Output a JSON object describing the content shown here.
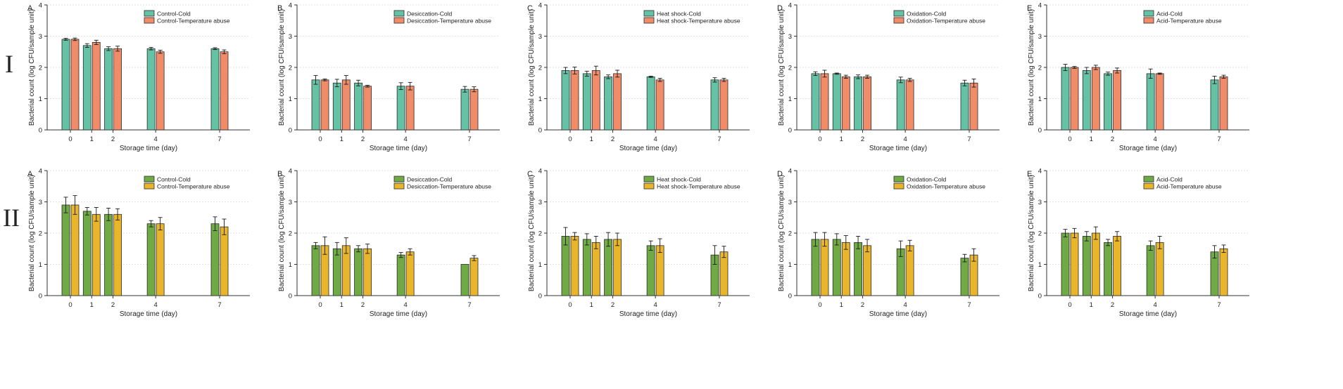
{
  "row_labels": [
    "I",
    "II"
  ],
  "colors": {
    "row1": {
      "cold": "#66C2A5",
      "abuse": "#F08C68"
    },
    "row2": {
      "cold": "#6FAA45",
      "abuse": "#E9B52B"
    },
    "edge": "#2b2b2b",
    "grid": "#d9d9d9",
    "axis": "#333333"
  },
  "chart_data": [
    {
      "row": 0,
      "panel_letter": "A",
      "type": "bar",
      "xlabel": "Storage time (day)",
      "ylabel": "Bacterial count (log CFU/sample unit)",
      "ylim": [
        0,
        4
      ],
      "yticks": [
        0,
        1,
        2,
        3,
        4
      ],
      "x": [
        0,
        1,
        2,
        4,
        7
      ],
      "legend_position": "top-right",
      "grid": true,
      "series": [
        {
          "name": "Control-Cold",
          "values": [
            2.9,
            2.7,
            2.6,
            2.6,
            2.6
          ],
          "errors": [
            0.03,
            0.06,
            0.06,
            0.04,
            0.03
          ]
        },
        {
          "name": "Control-Temperature abuse",
          "values": [
            2.9,
            2.8,
            2.6,
            2.5,
            2.5
          ],
          "errors": [
            0.04,
            0.07,
            0.08,
            0.05,
            0.06
          ]
        }
      ]
    },
    {
      "row": 0,
      "panel_letter": "B",
      "type": "bar",
      "xlabel": "Storage time (day)",
      "ylabel": "Bacterial count (log CFU/sample unit)",
      "ylim": [
        0,
        4
      ],
      "yticks": [
        0,
        1,
        2,
        3,
        4
      ],
      "x": [
        0,
        1,
        2,
        4,
        7
      ],
      "legend_position": "top-right",
      "grid": true,
      "series": [
        {
          "name": "Desiccation-Cold",
          "values": [
            1.6,
            1.5,
            1.5,
            1.4,
            1.3
          ],
          "errors": [
            0.14,
            0.12,
            0.09,
            0.11,
            0.09
          ]
        },
        {
          "name": "Desiccation-Temperature abuse",
          "values": [
            1.6,
            1.6,
            1.4,
            1.4,
            1.3
          ],
          "errors": [
            0.03,
            0.14,
            0.03,
            0.12,
            0.08
          ]
        }
      ]
    },
    {
      "row": 0,
      "panel_letter": "C",
      "type": "bar",
      "xlabel": "Storage time (day)",
      "ylabel": "Bacterial count (log CFU/sample unit)",
      "ylim": [
        0,
        4
      ],
      "yticks": [
        0,
        1,
        2,
        3,
        4
      ],
      "x": [
        0,
        1,
        2,
        4,
        7
      ],
      "legend_position": "top-right",
      "grid": true,
      "series": [
        {
          "name": "Heat shock-Cold",
          "values": [
            1.9,
            1.8,
            1.7,
            1.7,
            1.6
          ],
          "errors": [
            0.1,
            0.08,
            0.06,
            0.02,
            0.07
          ]
        },
        {
          "name": "Heat shock-Temperature abuse",
          "values": [
            1.9,
            1.9,
            1.8,
            1.6,
            1.6
          ],
          "errors": [
            0.11,
            0.14,
            0.11,
            0.05,
            0.05
          ]
        }
      ]
    },
    {
      "row": 0,
      "panel_letter": "D",
      "type": "bar",
      "xlabel": "Storage time (day)",
      "ylabel": "Bacterial count (log CFU/sample unit)",
      "ylim": [
        0,
        4
      ],
      "yticks": [
        0,
        1,
        2,
        3,
        4
      ],
      "x": [
        0,
        1,
        2,
        4,
        7
      ],
      "legend_position": "top-right",
      "grid": true,
      "series": [
        {
          "name": "Oxidation-Cold",
          "values": [
            1.8,
            1.8,
            1.7,
            1.6,
            1.5
          ],
          "errors": [
            0.06,
            0.02,
            0.06,
            0.09,
            0.09
          ]
        },
        {
          "name": "Oxidation-Temperature abuse",
          "values": [
            1.8,
            1.7,
            1.7,
            1.6,
            1.5
          ],
          "errors": [
            0.11,
            0.05,
            0.05,
            0.05,
            0.13
          ]
        }
      ]
    },
    {
      "row": 0,
      "panel_letter": "E",
      "type": "bar",
      "xlabel": "Storage time (day)",
      "ylabel": "Bacterial count (log CFU/sample unit)",
      "ylim": [
        0,
        4
      ],
      "yticks": [
        0,
        1,
        2,
        3,
        4
      ],
      "x": [
        0,
        1,
        2,
        4,
        7
      ],
      "legend_position": "top-right",
      "grid": true,
      "series": [
        {
          "name": "Acid-Cold",
          "values": [
            2.0,
            1.9,
            1.8,
            1.8,
            1.6
          ],
          "errors": [
            0.1,
            0.1,
            0.05,
            0.15,
            0.12
          ]
        },
        {
          "name": "Acid-Temperature abuse",
          "values": [
            2.0,
            2.0,
            1.9,
            1.8,
            1.7
          ],
          "errors": [
            0.03,
            0.07,
            0.08,
            0.02,
            0.05
          ]
        }
      ]
    },
    {
      "row": 1,
      "panel_letter": "A",
      "type": "bar",
      "xlabel": "Storage time (day)",
      "ylabel": "Bacterial count (log CFU/sample unit)",
      "ylim": [
        0,
        4
      ],
      "yticks": [
        0,
        1,
        2,
        3,
        4
      ],
      "x": [
        0,
        1,
        2,
        4,
        7
      ],
      "legend_position": "top-right",
      "grid": true,
      "series": [
        {
          "name": "Control-Cold",
          "values": [
            2.9,
            2.7,
            2.6,
            2.3,
            2.3
          ],
          "errors": [
            0.25,
            0.12,
            0.2,
            0.1,
            0.22
          ]
        },
        {
          "name": "Control-Temperature abuse",
          "values": [
            2.9,
            2.6,
            2.6,
            2.3,
            2.2
          ],
          "errors": [
            0.3,
            0.22,
            0.18,
            0.2,
            0.25
          ]
        }
      ]
    },
    {
      "row": 1,
      "panel_letter": "B",
      "type": "bar",
      "xlabel": "Storage time (day)",
      "ylabel": "Bacterial count (log CFU/sample unit)",
      "ylim": [
        0,
        4
      ],
      "yticks": [
        0,
        1,
        2,
        3,
        4
      ],
      "x": [
        0,
        1,
        2,
        4,
        7
      ],
      "legend_position": "top-right",
      "grid": true,
      "series": [
        {
          "name": "Desiccation-Cold",
          "values": [
            1.6,
            1.5,
            1.5,
            1.3,
            1.0
          ],
          "errors": [
            0.1,
            0.2,
            0.1,
            0.08,
            0.0
          ]
        },
        {
          "name": "Desiccation-Temperature abuse",
          "values": [
            1.6,
            1.6,
            1.5,
            1.4,
            1.2
          ],
          "errors": [
            0.28,
            0.25,
            0.15,
            0.1,
            0.08
          ]
        }
      ]
    },
    {
      "row": 1,
      "panel_letter": "C",
      "type": "bar",
      "xlabel": "Storage time (day)",
      "ylabel": "Bacterial count (log CFU/sample unit)",
      "ylim": [
        0,
        4
      ],
      "yticks": [
        0,
        1,
        2,
        3,
        4
      ],
      "x": [
        0,
        1,
        2,
        4,
        7
      ],
      "legend_position": "top-right",
      "grid": true,
      "series": [
        {
          "name": "Heat shock-Cold",
          "values": [
            1.9,
            1.8,
            1.8,
            1.6,
            1.3
          ],
          "errors": [
            0.28,
            0.18,
            0.22,
            0.15,
            0.3
          ]
        },
        {
          "name": "Heat shock-Temperature abuse",
          "values": [
            1.9,
            1.7,
            1.8,
            1.6,
            1.4
          ],
          "errors": [
            0.12,
            0.2,
            0.2,
            0.22,
            0.18
          ]
        }
      ]
    },
    {
      "row": 1,
      "panel_letter": "D",
      "type": "bar",
      "xlabel": "Storage time (day)",
      "ylabel": "Bacterial count (log CFU/sample unit)",
      "ylim": [
        0,
        4
      ],
      "yticks": [
        0,
        1,
        2,
        3,
        4
      ],
      "x": [
        0,
        1,
        2,
        4,
        7
      ],
      "legend_position": "top-right",
      "grid": true,
      "series": [
        {
          "name": "Oxidation-Cold",
          "values": [
            1.8,
            1.8,
            1.7,
            1.5,
            1.2
          ],
          "errors": [
            0.22,
            0.18,
            0.2,
            0.25,
            0.12
          ]
        },
        {
          "name": "Oxidation-Temperature abuse",
          "values": [
            1.8,
            1.7,
            1.6,
            1.6,
            1.3
          ],
          "errors": [
            0.22,
            0.22,
            0.2,
            0.17,
            0.2
          ]
        }
      ]
    },
    {
      "row": 1,
      "panel_letter": "E",
      "type": "bar",
      "xlabel": "Storage time (day)",
      "ylabel": "Bacterial count (log CFU/sample unit)",
      "ylim": [
        0,
        4
      ],
      "yticks": [
        0,
        1,
        2,
        3,
        4
      ],
      "x": [
        0,
        1,
        2,
        4,
        7
      ],
      "legend_position": "top-right",
      "grid": true,
      "series": [
        {
          "name": "Acid-Cold",
          "values": [
            2.0,
            1.9,
            1.7,
            1.6,
            1.4
          ],
          "errors": [
            0.12,
            0.15,
            0.1,
            0.15,
            0.2
          ]
        },
        {
          "name": "Acid-Temperature abuse",
          "values": [
            2.0,
            2.0,
            1.9,
            1.7,
            1.5
          ],
          "errors": [
            0.15,
            0.2,
            0.15,
            0.2,
            0.12
          ]
        }
      ]
    }
  ]
}
